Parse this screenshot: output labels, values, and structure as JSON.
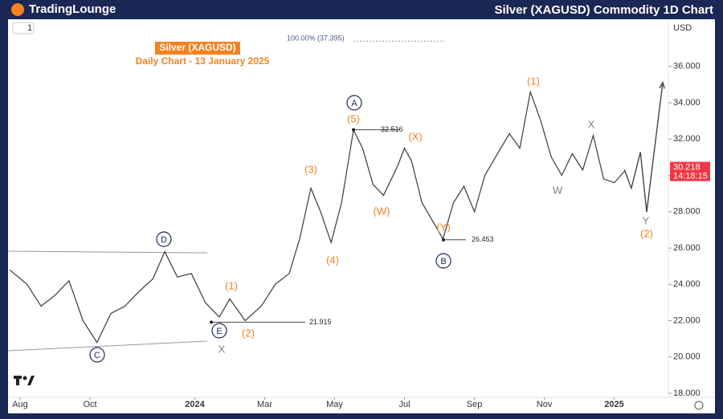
{
  "brand": "TradingLounge",
  "chart_data": {
    "type": "line",
    "title": "Silver (XAGUSD) Commodity 1D Chart",
    "subtitle": "Silver (XAGUSD)",
    "caption": "Daily Chart - 13 January 2025",
    "interval": "1",
    "currency": "USD",
    "series": [
      {
        "color": "#3a3a3a",
        "x": [
          -0.3,
          0.2,
          0.6,
          1.0,
          1.4,
          1.8,
          2.2,
          2.6,
          3.0,
          3.4,
          3.8,
          4.14,
          4.5,
          4.9,
          5.3,
          5.7,
          6.0,
          6.44,
          6.9,
          7.3,
          7.7,
          8.0,
          8.32,
          8.6,
          8.9,
          9.2,
          9.54,
          9.8,
          10.1,
          10.4,
          10.8,
          11.0,
          11.2,
          11.5,
          11.8,
          12.1,
          12.4,
          12.7,
          13.0,
          13.3,
          13.6,
          14.0,
          14.3,
          14.6,
          14.9,
          15.2,
          15.5,
          15.8,
          16.1,
          16.4,
          16.7,
          17.0,
          17.29
        ],
        "values": [
          24.8,
          24.0,
          22.8,
          23.4,
          24.2,
          22.0,
          20.8,
          22.4,
          22.8,
          23.6,
          24.3,
          25.8,
          24.4,
          24.6,
          23.0,
          22.2,
          23.2,
          22.0,
          22.8,
          24.0,
          24.6,
          26.5,
          29.3,
          28.0,
          26.3,
          28.5,
          32.5,
          31.5,
          29.5,
          28.9,
          30.5,
          31.5,
          30.8,
          28.5,
          27.5,
          26.5,
          28.5,
          29.4,
          28.0,
          30.0,
          31.0,
          32.3,
          31.5,
          34.6,
          33.0,
          31.0,
          30.0,
          31.2,
          30.3,
          32.2,
          29.8,
          29.6,
          30.218
        ]
      },
      {
        "color": "#444444",
        "x": [
          17.29,
          17.49,
          17.75,
          17.93,
          18.39
        ],
        "values": [
          30.32,
          29.3,
          31.29,
          27.98,
          35.12
        ]
      }
    ],
    "last_price": 30.218,
    "countdown": "14:18:15",
    "levels": [
      37.395,
      32.516,
      26.453,
      21.915
    ],
    "level_labels": [
      "100.00% (37.395)",
      "32.516",
      "26.453",
      "21.915"
    ],
    "annotations": [
      "(1)",
      "(2)",
      "(3)",
      "(4)",
      "(5)",
      "(W)",
      "(X)",
      "(Y)",
      "(1)",
      "(2)",
      "A",
      "B",
      "C",
      "D",
      "E",
      "X",
      "W",
      "Y",
      "X"
    ],
    "xlim": [
      -0.345,
      18.55
    ],
    "xticks": [
      {
        "value": 0,
        "label": "Aug"
      },
      {
        "value": 2,
        "label": "Oct"
      },
      {
        "value": 5,
        "label": "2024"
      },
      {
        "value": 7,
        "label": "Mar"
      },
      {
        "value": 9,
        "label": "May"
      },
      {
        "value": 11,
        "label": "Jul"
      },
      {
        "value": 13,
        "label": "Sep"
      },
      {
        "value": 15,
        "label": "Nov"
      },
      {
        "value": 17,
        "label": "2025"
      }
    ],
    "ylim": [
      18,
      38.6
    ],
    "yticks": [
      {
        "value": 18,
        "label": "18.000"
      },
      {
        "value": 20,
        "label": "20.000"
      },
      {
        "value": 22,
        "label": "22.000"
      },
      {
        "value": 24,
        "label": "24.000"
      },
      {
        "value": 26,
        "label": "26.000"
      },
      {
        "value": 28,
        "label": "28.000"
      },
      {
        "value": 30,
        "label": "30.000"
      },
      {
        "value": 32,
        "label": "32.000"
      },
      {
        "value": 34,
        "label": "34.000"
      },
      {
        "value": 36,
        "label": "36.000"
      }
    ]
  }
}
